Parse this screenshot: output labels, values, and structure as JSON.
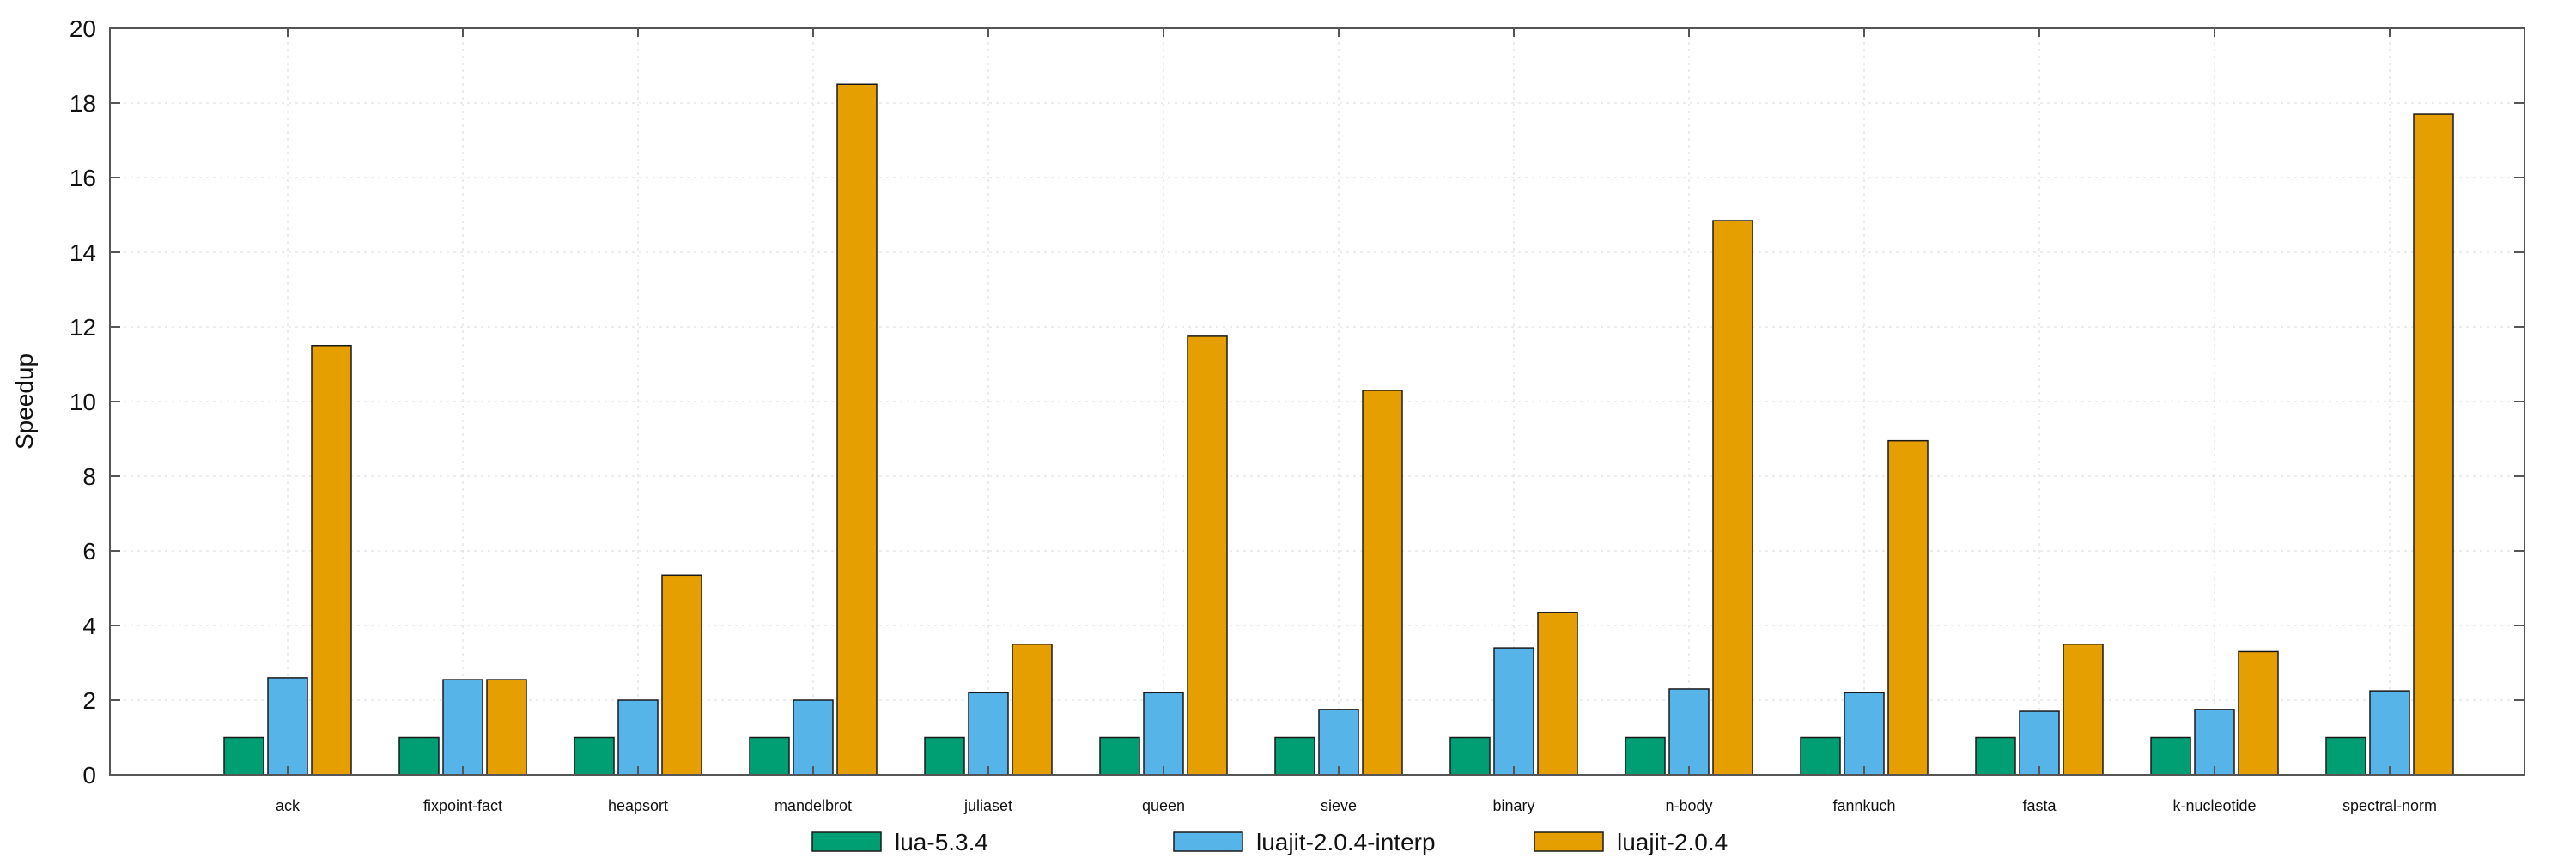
{
  "chart_data": {
    "type": "bar",
    "title": "",
    "xlabel": "",
    "ylabel": "Speedup",
    "ylim": [
      0,
      20
    ],
    "yticks": [
      0,
      2,
      4,
      6,
      8,
      10,
      12,
      14,
      16,
      18,
      20
    ],
    "grid": true,
    "legend_position": "bottom",
    "categories": [
      "ack",
      "fixpoint-fact",
      "heapsort",
      "mandelbrot",
      "juliaset",
      "queen",
      "sieve",
      "binary",
      "n-body",
      "fannkuch",
      "fasta",
      "k-nucleotide",
      "spectral-norm"
    ],
    "series": [
      {
        "name": "lua-5.3.4",
        "color": "#009E73",
        "values": [
          1,
          1,
          1,
          1,
          1,
          1,
          1,
          1,
          1,
          1,
          1,
          1,
          1
        ]
      },
      {
        "name": "luajit-2.0.4-interp",
        "color": "#56B4E9",
        "values": [
          2.6,
          2.55,
          2.0,
          2.0,
          2.2,
          2.2,
          1.75,
          3.4,
          2.3,
          2.2,
          1.7,
          1.75,
          2.25
        ]
      },
      {
        "name": "luajit-2.0.4",
        "color": "#E69F00",
        "values": [
          11.5,
          2.55,
          5.35,
          18.5,
          3.5,
          11.75,
          10.3,
          4.35,
          14.85,
          8.95,
          3.5,
          3.3,
          17.7
        ]
      }
    ]
  }
}
